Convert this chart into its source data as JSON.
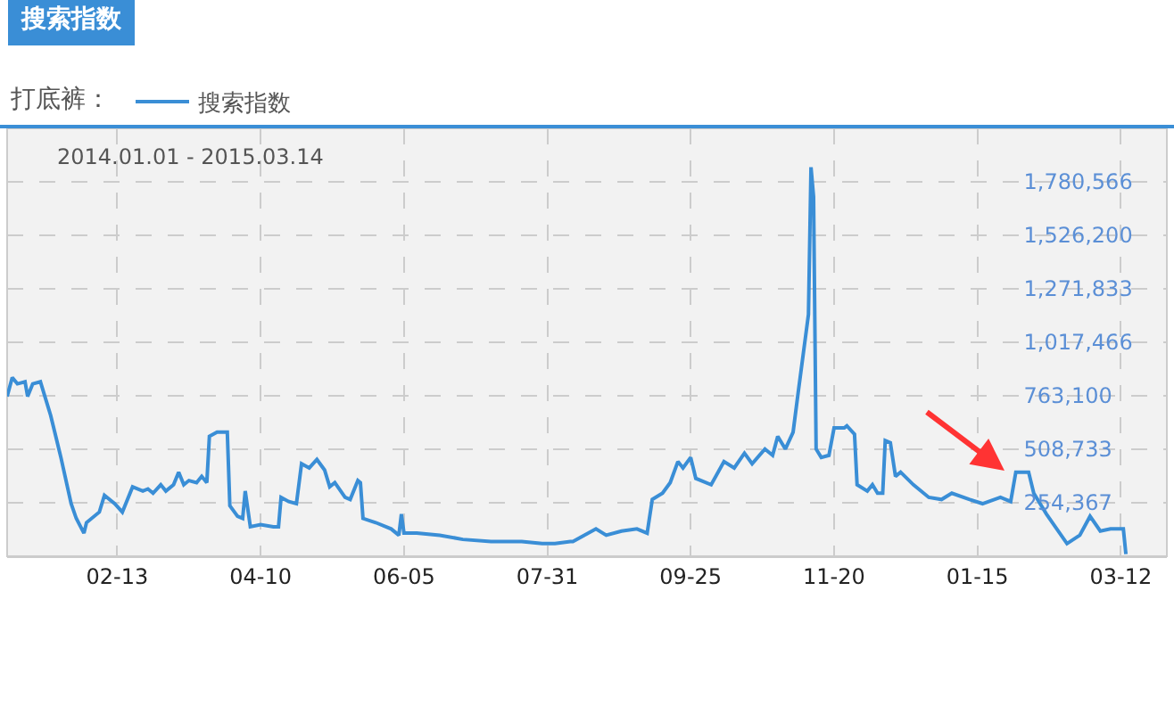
{
  "chart_data": {
    "type": "line",
    "title": "搜索指数",
    "legend_title": "打底裤：",
    "annotations": [
      "2014.01.01 - 2015.03.14"
    ],
    "x": [
      "2014-01-01",
      "2014-01-03",
      "2014-01-05",
      "2014-01-08",
      "2014-01-09",
      "2014-01-11",
      "2014-01-14",
      "2014-01-16",
      "2014-01-18",
      "2014-01-20",
      "2014-01-22",
      "2014-01-26",
      "2014-01-28",
      "2014-01-31",
      "2014-02-01",
      "2014-02-06",
      "2014-02-08",
      "2014-02-12",
      "2014-02-15",
      "2014-02-19",
      "2014-02-23",
      "2014-02-25",
      "2014-02-27",
      "2014-03-02",
      "2014-03-04",
      "2014-03-07",
      "2014-03-09",
      "2014-03-11",
      "2014-03-13",
      "2014-03-16",
      "2014-03-18",
      "2014-03-20",
      "2014-03-21",
      "2014-03-24",
      "2014-03-26",
      "2014-03-28",
      "2014-03-29",
      "2014-04-01",
      "2014-04-03",
      "2014-04-04",
      "2014-04-06",
      "2014-04-10",
      "2014-04-15",
      "2014-04-17",
      "2014-04-18",
      "2014-04-21",
      "2014-04-24",
      "2014-04-26",
      "2014-04-29",
      "2014-05-02",
      "2014-05-05",
      "2014-05-07",
      "2014-05-09",
      "2014-05-13",
      "2014-05-15",
      "2014-05-18",
      "2014-05-19",
      "2014-05-20",
      "2014-05-25",
      "2014-05-31",
      "2014-06-03",
      "2014-06-04",
      "2014-06-05",
      "2014-06-10",
      "2014-06-19",
      "2014-06-28",
      "2014-07-09",
      "2014-07-21",
      "2014-07-29",
      "2014-08-03",
      "2014-08-09",
      "2014-08-10",
      "2014-08-19",
      "2014-08-23",
      "2014-08-29",
      "2014-09-04",
      "2014-09-08",
      "2014-09-10",
      "2014-09-14",
      "2014-09-17",
      "2014-09-20",
      "2014-09-22",
      "2014-09-25",
      "2014-09-27",
      "2014-10-03",
      "2014-10-08",
      "2014-10-12",
      "2014-10-16",
      "2014-10-19",
      "2014-10-24",
      "2014-10-27",
      "2014-10-29",
      "2014-11-01",
      "2014-11-04",
      "2014-11-06",
      "2014-11-10",
      "2014-11-11",
      "2014-11-12",
      "2014-11-13",
      "2014-11-15",
      "2014-11-18",
      "2014-11-20",
      "2014-11-24",
      "2014-11-25",
      "2014-11-28",
      "2014-11-29",
      "2014-12-03",
      "2014-12-05",
      "2014-12-07",
      "2014-12-09",
      "2014-12-10",
      "2014-12-12",
      "2014-12-14",
      "2014-12-16",
      "2014-12-21",
      "2014-12-27",
      "2015-01-01",
      "2015-01-05",
      "2015-01-12",
      "2015-01-17",
      "2015-01-24",
      "2015-01-28",
      "2015-01-30",
      "2015-02-04",
      "2015-02-06",
      "2015-02-11",
      "2015-02-15",
      "2015-02-19",
      "2015-02-24",
      "2015-02-28",
      "2015-03-04",
      "2015-03-08",
      "2015-03-13",
      "2015-03-14"
    ],
    "series": [
      {
        "name": "搜索指数",
        "color": "#3a8ed6",
        "values": [
          760000,
          850000,
          820000,
          830000,
          760000,
          820000,
          830000,
          750000,
          670000,
          570000,
          470000,
          250000,
          180000,
          110000,
          160000,
          210000,
          290000,
          250000,
          210000,
          330000,
          310000,
          320000,
          300000,
          340000,
          310000,
          340000,
          400000,
          340000,
          360000,
          350000,
          380000,
          350000,
          570000,
          590000,
          590000,
          590000,
          240000,
          190000,
          180000,
          310000,
          140000,
          150000,
          140000,
          140000,
          280000,
          260000,
          250000,
          440000,
          420000,
          460000,
          410000,
          330000,
          350000,
          280000,
          270000,
          360000,
          350000,
          180000,
          160000,
          130000,
          100000,
          200000,
          110000,
          110000,
          100000,
          80000,
          70000,
          70000,
          60000,
          60000,
          70000,
          70000,
          130000,
          100000,
          120000,
          130000,
          110000,
          270000,
          300000,
          350000,
          450000,
          420000,
          470000,
          370000,
          340000,
          450000,
          420000,
          490000,
          440000,
          510000,
          480000,
          570000,
          510000,
          590000,
          780000,
          1150000,
          1850000,
          1710000,
          510000,
          470000,
          480000,
          610000,
          610000,
          620000,
          580000,
          340000,
          310000,
          340000,
          300000,
          300000,
          550000,
          540000,
          380000,
          400000,
          340000,
          280000,
          270000,
          300000,
          270000,
          250000,
          280000,
          260000,
          400000,
          400000,
          300000,
          200000,
          130000,
          60000,
          100000,
          190000,
          120000,
          130000,
          130000,
          10000
        ]
      }
    ],
    "xlim": [
      "2014-01-01",
      "2015-03-30"
    ],
    "xticks": [
      {
        "value": "2014-02-13",
        "label": "02-13"
      },
      {
        "value": "2014-04-10",
        "label": "04-10"
      },
      {
        "value": "2014-06-05",
        "label": "06-05"
      },
      {
        "value": "2014-07-31",
        "label": "07-31"
      },
      {
        "value": "2014-09-25",
        "label": "09-25"
      },
      {
        "value": "2014-11-20",
        "label": "11-20"
      },
      {
        "value": "2015-01-15",
        "label": "01-15"
      },
      {
        "value": "2015-03-12",
        "label": "03-12"
      }
    ],
    "ylim": [
      0,
      2034933
    ],
    "yticks": [
      {
        "value": 254367,
        "label": "254,367"
      },
      {
        "value": 508733,
        "label": "508,733"
      },
      {
        "value": 763100,
        "label": "763,100"
      },
      {
        "value": 1017466,
        "label": "1,017,466"
      },
      {
        "value": 1271833,
        "label": "1,271,833"
      },
      {
        "value": 1526200,
        "label": "1,526,200"
      },
      {
        "value": 1780566,
        "label": "1,780,566"
      }
    ],
    "grid": true,
    "legend": "top left",
    "marker": "none",
    "line_style": "solid"
  }
}
